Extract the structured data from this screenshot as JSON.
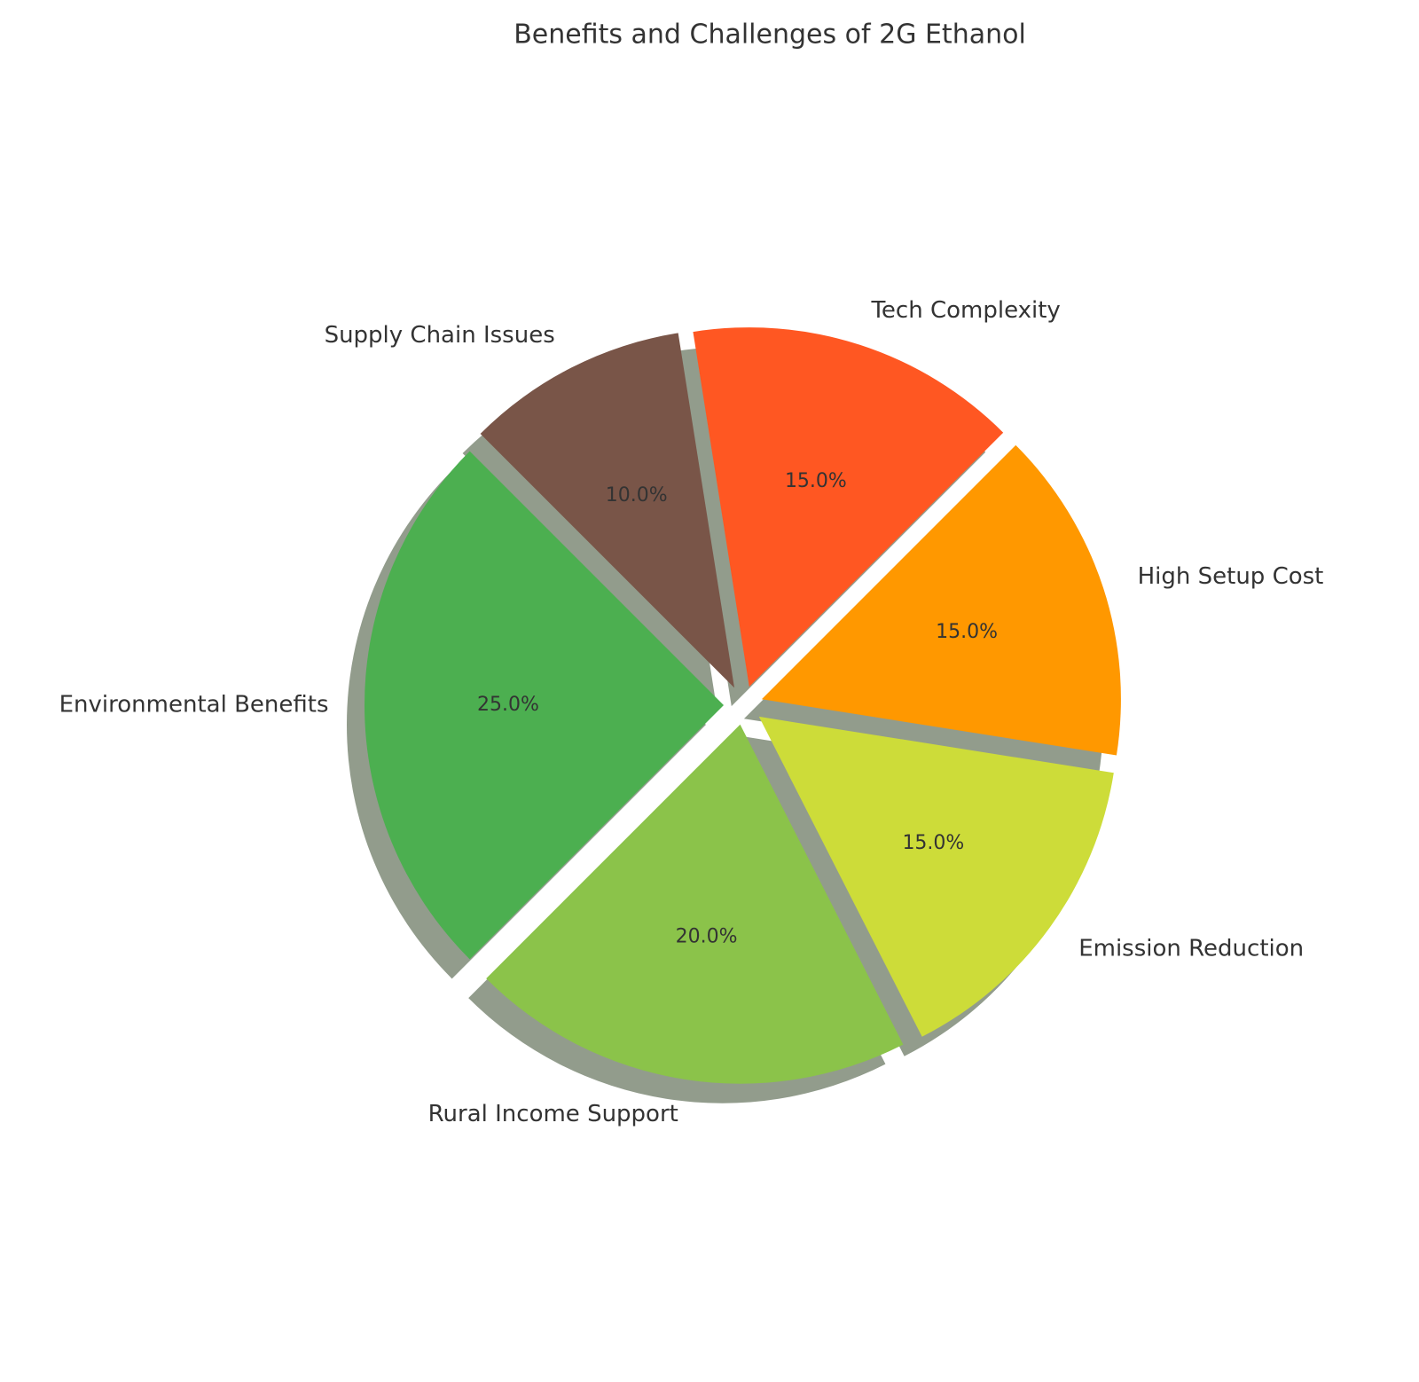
{
  "chart_data": {
    "type": "pie",
    "title": "Benefits and Challenges of 2G Ethanol",
    "categories": [
      "Environmental Benefits",
      "Rural Income Support",
      "Emission Reduction",
      "High Setup Cost",
      "Tech Complexity",
      "Supply Chain Issues"
    ],
    "values": [
      25,
      20,
      15,
      15,
      15,
      10
    ],
    "value_labels": [
      "25.0%",
      "20.0%",
      "15.0%",
      "15.0%",
      "15.0%",
      "10.0%"
    ],
    "colors": [
      "#4caf50",
      "#8bc34a",
      "#cddc39",
      "#ff9800",
      "#ff5722",
      "#795548"
    ],
    "start_angle": 135,
    "shadow": true
  }
}
